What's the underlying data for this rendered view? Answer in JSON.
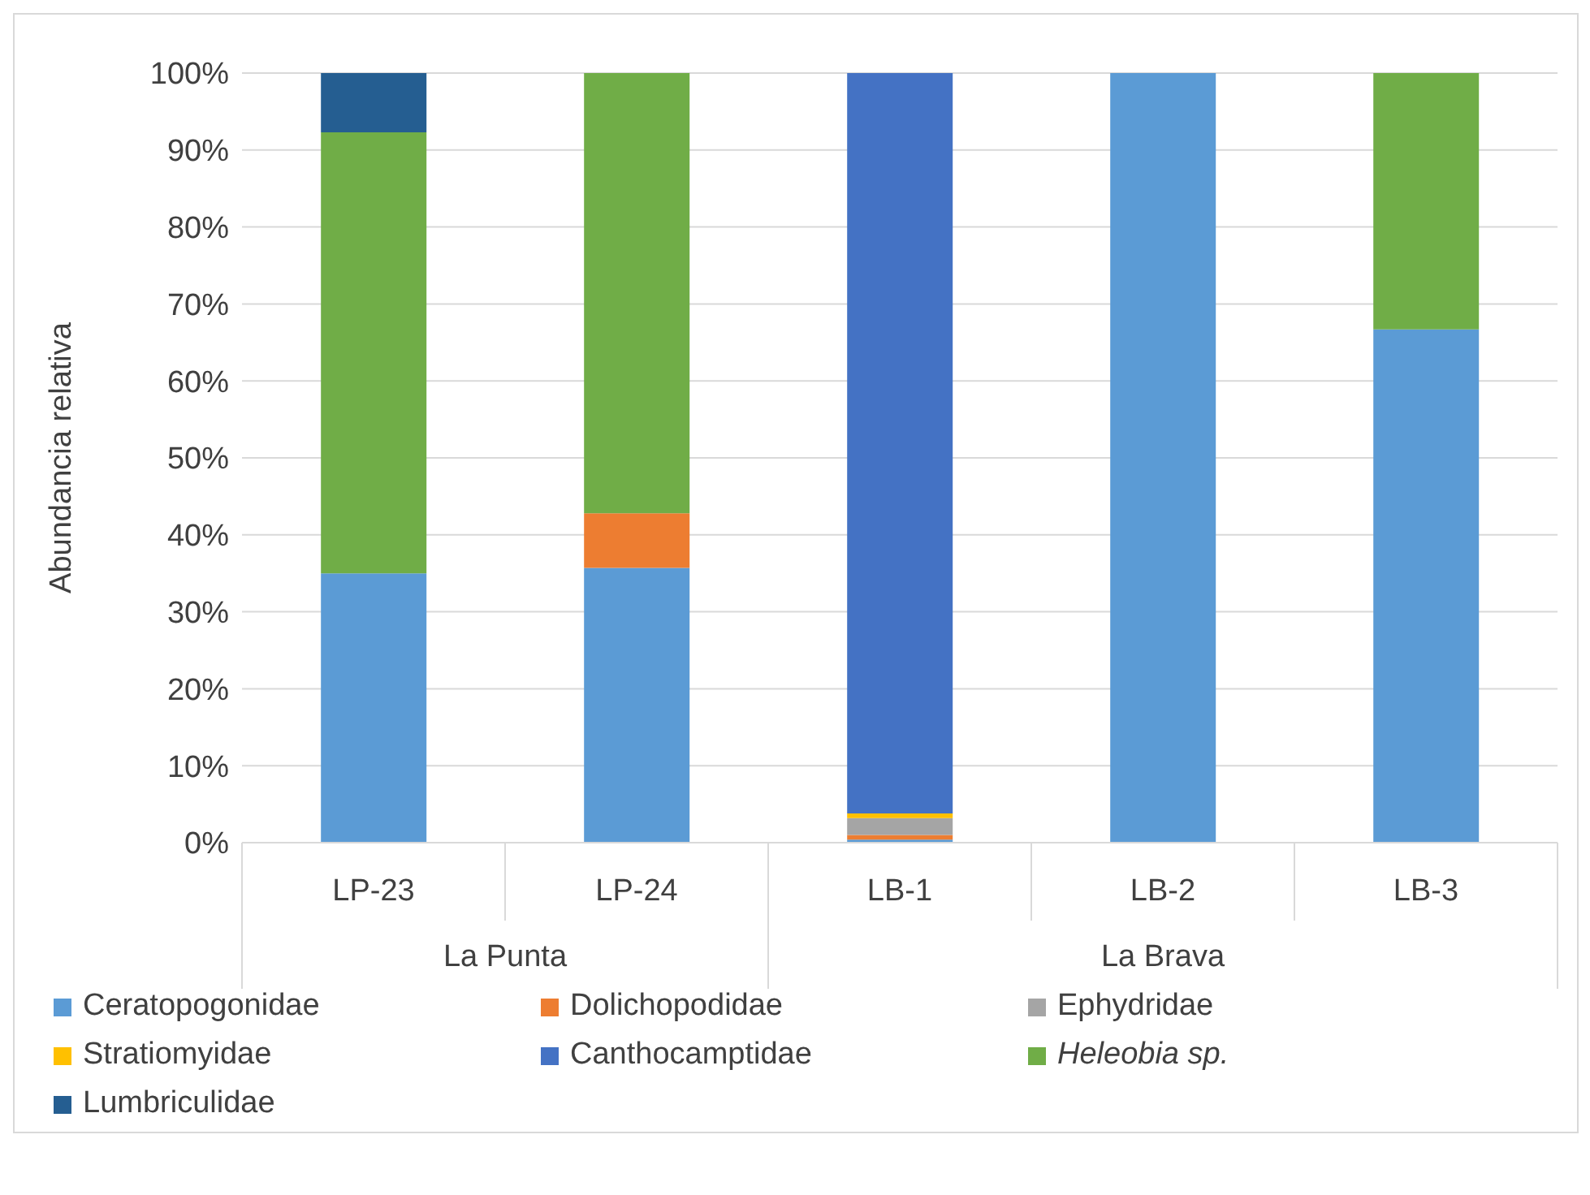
{
  "chart_data": {
    "type": "bar",
    "stacked": true,
    "ylabel": "Abundancia relativa",
    "categories": [
      "LP-23",
      "LP-24",
      "LB-1",
      "LB-2",
      "LB-3"
    ],
    "series": [
      {
        "name": "Ceratopogonidae",
        "color": "#5b9bd5",
        "values": [
          35,
          35.7,
          0.4,
          100,
          66.7
        ]
      },
      {
        "name": "Dolichopodidae",
        "color": "#ed7d31",
        "values": [
          0,
          7.1,
          0.6,
          0,
          0
        ]
      },
      {
        "name": "Ephydridae",
        "color": "#a5a5a5",
        "values": [
          0,
          0,
          2.2,
          0,
          0
        ]
      },
      {
        "name": "Stratiomyidae",
        "color": "#ffc000",
        "values": [
          0,
          0,
          0.6,
          0,
          0
        ]
      },
      {
        "name": "Canthocamptidae",
        "color": "#4472c4",
        "values": [
          0,
          0,
          96.2,
          0,
          0
        ]
      },
      {
        "name": "Heleobia sp.",
        "color": "#70ad47",
        "values": [
          57.3,
          57.2,
          0,
          0,
          33.3
        ]
      },
      {
        "name": "Lumbriculidae",
        "color": "#255e91",
        "values": [
          7.7,
          0,
          0,
          0,
          0
        ]
      }
    ],
    "ylim": [
      0,
      100
    ],
    "yticks": [
      {
        "value": 0,
        "label": "0%"
      },
      {
        "value": 10,
        "label": "10%"
      },
      {
        "value": 20,
        "label": "20%"
      },
      {
        "value": 30,
        "label": "30%"
      },
      {
        "value": 40,
        "label": "40%"
      },
      {
        "value": 50,
        "label": "50%"
      },
      {
        "value": 60,
        "label": "60%"
      },
      {
        "value": 70,
        "label": "70%"
      },
      {
        "value": 80,
        "label": "80%"
      },
      {
        "value": 90,
        "label": "90%"
      },
      {
        "value": 100,
        "label": "100%"
      }
    ],
    "annotations": [
      "La Punta",
      "La Brava"
    ],
    "grid": "y",
    "legend": "bottom"
  }
}
